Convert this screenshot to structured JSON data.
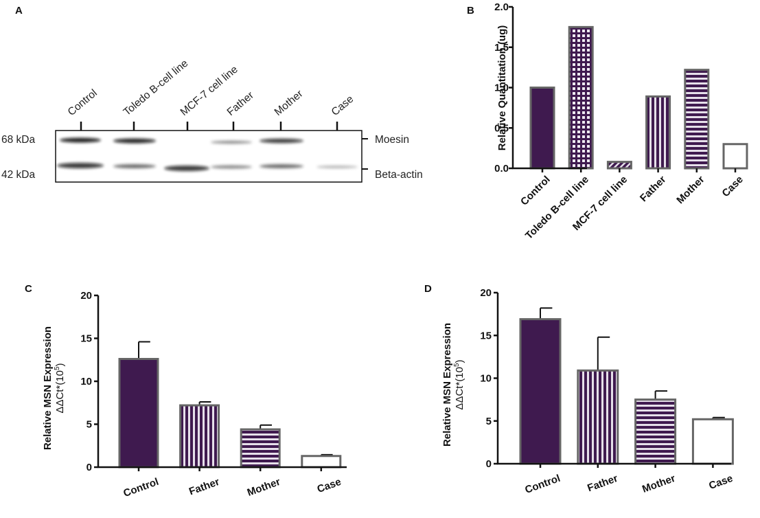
{
  "panels": {
    "a": "A",
    "b": "B",
    "c": "C",
    "d": "D"
  },
  "blot": {
    "lanes": [
      "Control",
      "Toledo B-cell line",
      "MCF-7 cell line",
      "Father",
      "Mother",
      "Case"
    ],
    "markers": [
      "68 kDa",
      "42 kDa"
    ],
    "bands": [
      "Moesin",
      "Beta-actin"
    ]
  },
  "colors": {
    "fill": "#3f1a4f",
    "edge": "#666666",
    "pattern_light": "#e6e0ea",
    "axis": "#111111"
  },
  "chart_data": [
    {
      "id": "B",
      "type": "bar",
      "categories": [
        "Control",
        "Toledo B-cell line",
        "MCF-7 cell line",
        "Father",
        "Mother",
        "Case"
      ],
      "values": [
        1.0,
        1.75,
        0.08,
        0.89,
        1.22,
        0.3
      ],
      "patterns": [
        "solid",
        "grid",
        "diagonal",
        "vertical",
        "horizontal",
        "empty"
      ],
      "ylabel": "Relative Quantitation (ug)",
      "ylim": [
        0,
        2.0
      ],
      "yticks": [
        "0.0",
        "0.5",
        "1.0",
        "1.5",
        "2.0"
      ],
      "ytick_values": [
        0,
        0.5,
        1.0,
        1.5,
        2.0
      ],
      "grid": false
    },
    {
      "id": "C",
      "type": "bar",
      "categories": [
        "Control",
        "Father",
        "Mother",
        "Case"
      ],
      "values": [
        12.6,
        7.2,
        4.4,
        1.3
      ],
      "errors": [
        2.0,
        0.4,
        0.5,
        0.15
      ],
      "patterns": [
        "solid",
        "vertical",
        "horizontal",
        "empty"
      ],
      "ylabel_line1": "Relative MSN Expression",
      "ylabel_line2": "ΔΔCt*(10",
      "ylabel_sup": "5",
      "ylabel_close": ")",
      "ylim": [
        0,
        20
      ],
      "yticks": [
        "0",
        "5",
        "10",
        "15",
        "20"
      ],
      "ytick_values": [
        0,
        5,
        10,
        15,
        20
      ],
      "grid": false
    },
    {
      "id": "D",
      "type": "bar",
      "categories": [
        "Control",
        "Father",
        "Mother",
        "Case"
      ],
      "values": [
        16.9,
        10.9,
        7.5,
        5.2
      ],
      "errors": [
        1.3,
        3.9,
        1.0,
        0.2
      ],
      "patterns": [
        "solid",
        "vertical",
        "horizontal",
        "empty"
      ],
      "ylabel_line1": "Relative MSN Expression",
      "ylabel_line2": "ΔΔCt*(10",
      "ylabel_sup": "5",
      "ylabel_close": ")",
      "ylim": [
        0,
        20
      ],
      "yticks": [
        "0",
        "5",
        "10",
        "15",
        "20"
      ],
      "ytick_values": [
        0,
        5,
        10,
        15,
        20
      ],
      "grid": false
    }
  ]
}
